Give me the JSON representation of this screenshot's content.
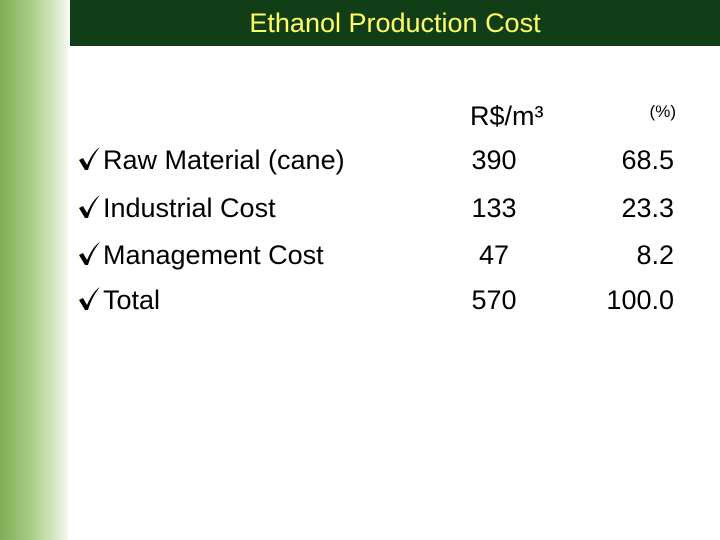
{
  "header": {
    "title": "Ethanol Production Cost"
  },
  "table": {
    "columns": [
      "R$/m³",
      "(%)"
    ],
    "rows": [
      [
        "Raw Material (cane)",
        "390",
        "68.5"
      ],
      [
        "Industrial Cost",
        "133",
        "23.3"
      ],
      [
        "Management Cost",
        "47",
        "8.2"
      ],
      [
        "Total",
        "570",
        "100.0"
      ]
    ]
  }
}
